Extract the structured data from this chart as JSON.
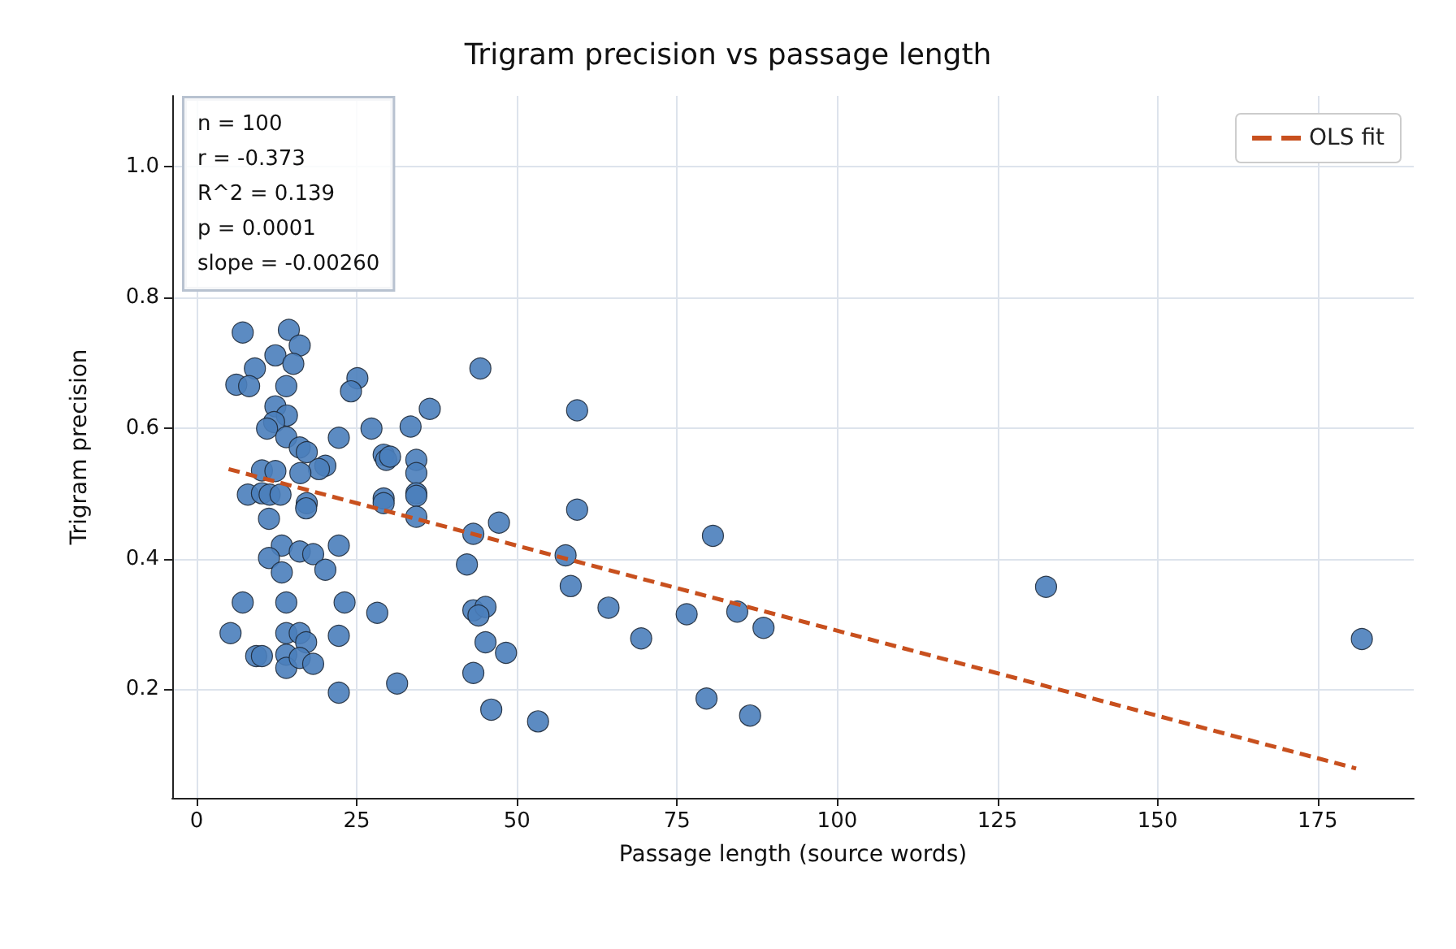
{
  "chart_data": {
    "type": "scatter",
    "title": "Trigram precision vs passage length",
    "xlabel": "Passage length (source words)",
    "ylabel": "Trigram precision",
    "xlim": [
      -3.8,
      190
    ],
    "xticks": [
      0,
      25,
      50,
      75,
      100,
      125,
      150,
      175
    ],
    "ylim": [
      0.034,
      1.108
    ],
    "yticks": [
      0.2,
      0.4,
      0.6,
      0.8,
      {
        "value": 1,
        "label": "1.0"
      }
    ],
    "grid": true,
    "legend": "top right",
    "marker": "circle",
    "annotations": [
      "n = 100",
      "r = -0.373",
      "R^2 = 0.139",
      "p = 0.0001",
      "slope = -0.00260"
    ],
    "series": [
      {
        "color": "#4a7ebb",
        "x": [
          7.2,
          14.4,
          16.1,
          12.3,
          9.1,
          15.1,
          6.2,
          8.2,
          14,
          25.1,
          24.1,
          44.3,
          12.3,
          14.1,
          12.1,
          11,
          14,
          22.2,
          27.3,
          33.4,
          36.4,
          16.1,
          17.2,
          20.1,
          19.1,
          16.2,
          10.2,
          12.3,
          29.2,
          29.6,
          34.3,
          34.3,
          8,
          10.2,
          11.4,
          13.1,
          17.2,
          29.2,
          34.3,
          11.3,
          17.1,
          29.2,
          34.3,
          34.3,
          43.2,
          42.2,
          13.3,
          11.3,
          16.1,
          18.2,
          13.3,
          20.1,
          22.2,
          7.2,
          14,
          23.1,
          28.2,
          5.3,
          14,
          16.1,
          17.1,
          22.2,
          9.3,
          10.2,
          14,
          14,
          16.1,
          18.2,
          22.2,
          31.3,
          43.2,
          45.1,
          44,
          45.1,
          43.2,
          46,
          59.4,
          59.4,
          47.2,
          57.6,
          58.4,
          64.3,
          69.4,
          76.5,
          80.6,
          84.4,
          88.5,
          79.6,
          86.4,
          48.3,
          53.3,
          30.2,
          132.6,
          181.9
        ],
        "values": [
          0.746,
          0.75,
          0.726,
          0.711,
          0.691,
          0.698,
          0.666,
          0.664,
          0.664,
          0.676,
          0.656,
          0.691,
          0.633,
          0.619,
          0.609,
          0.599,
          0.586,
          0.585,
          0.599,
          0.602,
          0.629,
          0.57,
          0.563,
          0.542,
          0.537,
          0.531,
          0.535,
          0.534,
          0.559,
          0.551,
          0.551,
          0.531,
          0.498,
          0.5,
          0.498,
          0.498,
          0.485,
          0.492,
          0.5,
          0.461,
          0.477,
          0.485,
          0.496,
          0.464,
          0.438,
          0.391,
          0.42,
          0.401,
          0.411,
          0.407,
          0.379,
          0.383,
          0.42,
          0.333,
          0.333,
          0.333,
          0.317,
          0.286,
          0.286,
          0.286,
          0.272,
          0.282,
          0.251,
          0.251,
          0.253,
          0.233,
          0.248,
          0.239,
          0.195,
          0.209,
          0.321,
          0.326,
          0.313,
          0.272,
          0.225,
          0.169,
          0.627,
          0.475,
          0.455,
          0.405,
          0.358,
          0.325,
          0.278,
          0.315,
          0.435,
          0.319,
          0.294,
          0.186,
          0.16,
          0.256,
          0.151,
          0.556,
          0.357,
          0.277
        ]
      },
      {
        "name": "OLS fit",
        "type": "line",
        "color": "#c8501e",
        "line_style": "dashed",
        "marker": "none",
        "x": [
          5,
          181
        ],
        "values": [
          0.537,
          0.079
        ]
      }
    ]
  }
}
